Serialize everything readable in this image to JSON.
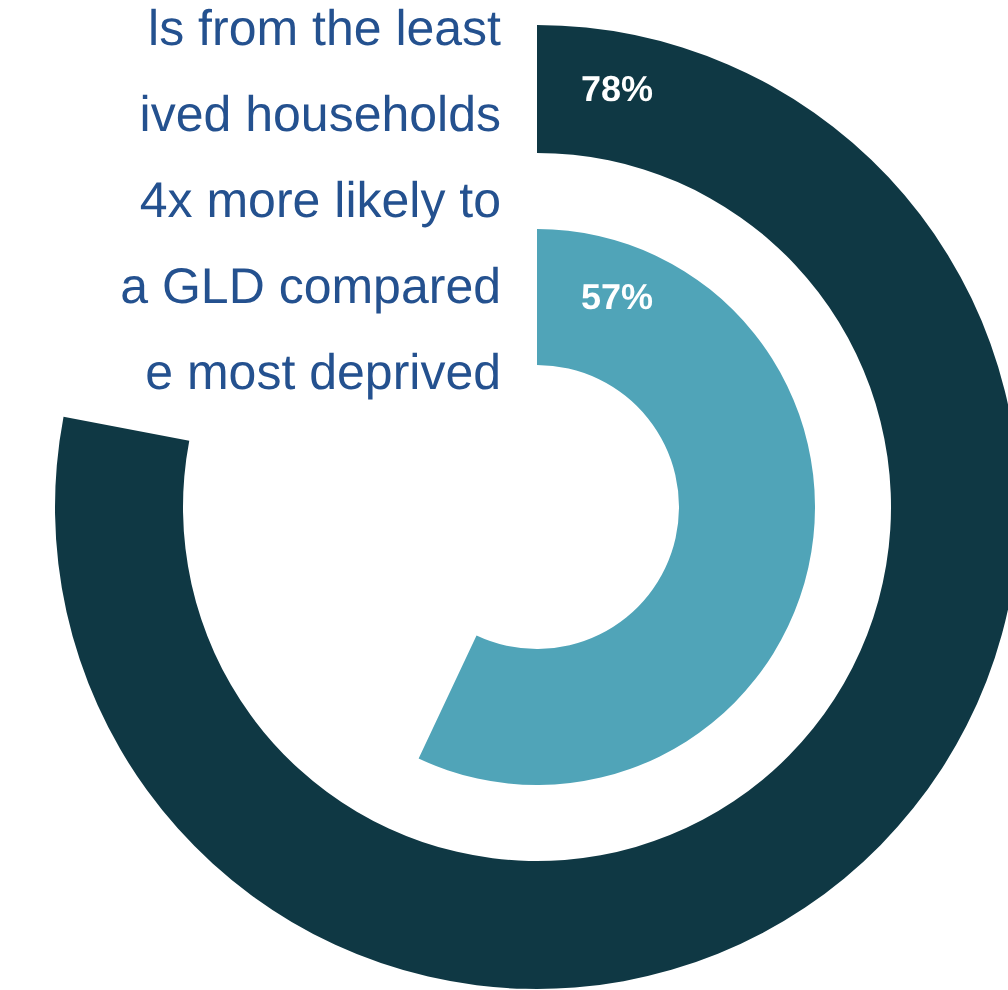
{
  "chart_data": {
    "type": "other",
    "categories": [
      null,
      null
    ],
    "values": [
      78,
      57
    ],
    "colors": [
      "#0f3844",
      "#50a4b8"
    ],
    "value_labels": [
      "78%",
      "57%"
    ],
    "annotations": [
      "ls from the least",
      "ived households",
      "4x more likely to",
      "a GLD compared",
      "e most deprived"
    ]
  }
}
